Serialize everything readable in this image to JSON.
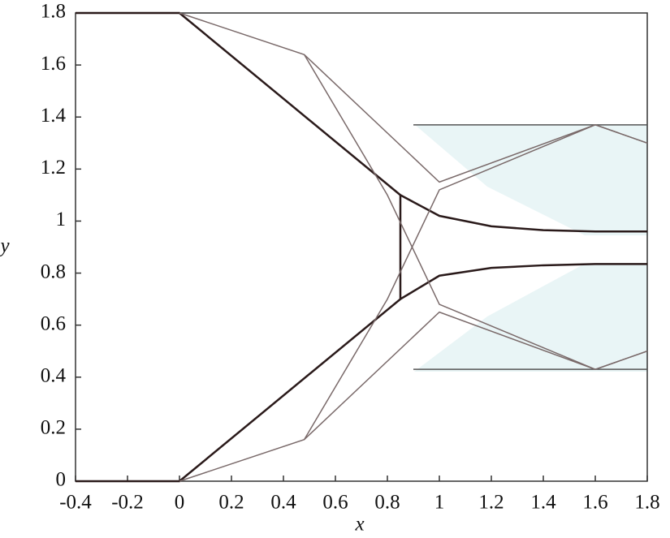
{
  "chart_data": {
    "type": "line",
    "x_label": "x",
    "y_label": "y",
    "xlim": [
      -0.4,
      1.8
    ],
    "ylim": [
      0,
      1.8
    ],
    "xticks": [
      -0.4,
      -0.2,
      0,
      0.2,
      0.4,
      0.6,
      0.8,
      1,
      1.2,
      1.4,
      1.6,
      1.8
    ],
    "yticks": [
      0,
      0.2,
      0.4,
      0.6,
      0.8,
      1,
      1.2,
      1.4,
      1.6,
      1.8
    ],
    "series": [
      {
        "color": "#2a1a1a",
        "x": [
          -0.4,
          0,
          0.85,
          0.85,
          0,
          -0.4
        ],
        "values": [
          1.8,
          1.8,
          1.1,
          0.7,
          0,
          0
        ]
      },
      {
        "color": "#2a1a1a",
        "x": [
          0.85,
          1.0,
          1.2,
          1.4,
          1.6,
          1.8
        ],
        "values": [
          1.1,
          1.02,
          0.98,
          0.965,
          0.96,
          0.96
        ]
      },
      {
        "color": "#2a1a1a",
        "x": [
          0.85,
          1.0,
          1.2,
          1.4,
          1.6,
          1.8
        ],
        "values": [
          0.7,
          0.79,
          0.82,
          0.83,
          0.835,
          0.835
        ]
      },
      {
        "color": "#555555",
        "x": [
          0.9,
          1.8
        ],
        "values": [
          1.37,
          1.37
        ]
      },
      {
        "color": "#555555",
        "x": [
          0.9,
          1.8
        ],
        "values": [
          0.43,
          0.43
        ]
      },
      {
        "color": "#7a6a6a",
        "x": [
          0,
          0.48,
          1.0,
          1.6,
          1.8
        ],
        "values": [
          1.8,
          1.64,
          1.15,
          1.37,
          1.3
        ]
      },
      {
        "color": "#7a6a6a",
        "x": [
          0.48,
          0.8,
          1.0,
          1.6,
          1.8
        ],
        "values": [
          1.64,
          1.1,
          0.68,
          0.43,
          0.5
        ]
      },
      {
        "color": "#7a6a6a",
        "x": [
          0,
          0.48,
          1.0,
          1.6,
          1.8
        ],
        "values": [
          0,
          0.16,
          0.65,
          0.43,
          0.5
        ]
      },
      {
        "color": "#7a6a6a",
        "x": [
          0.48,
          0.8,
          1.0,
          1.6,
          1.8
        ],
        "values": [
          0.16,
          0.7,
          1.12,
          1.37,
          1.3
        ]
      }
    ]
  }
}
